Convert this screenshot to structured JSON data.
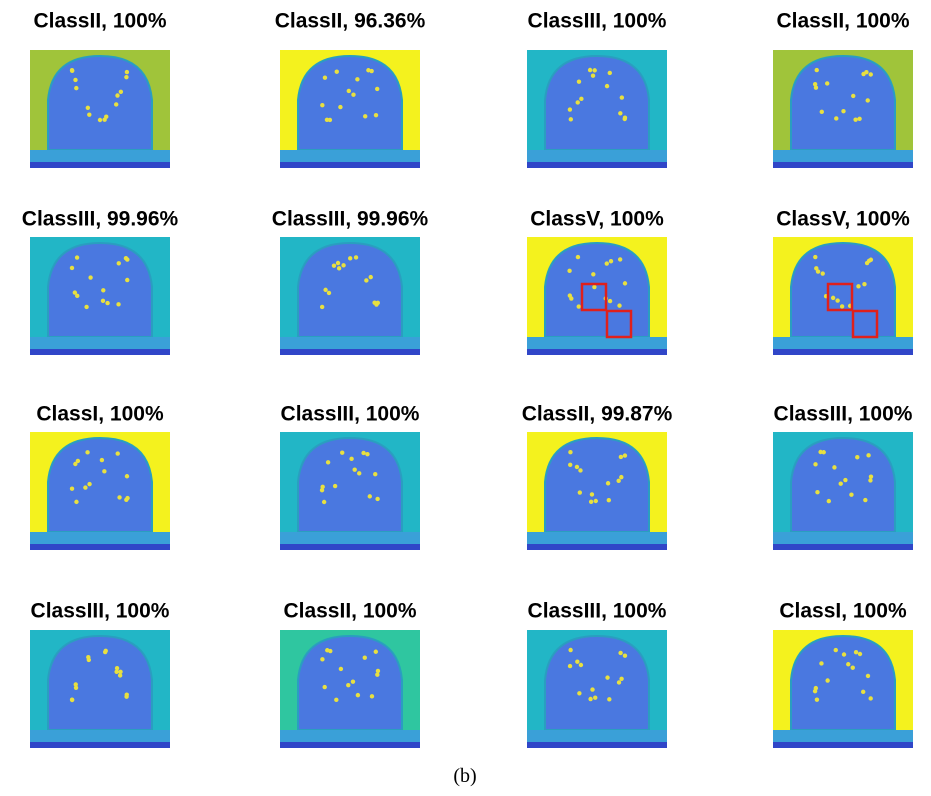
{
  "panels": [
    {
      "title": "ClassII, 100%"
    },
    {
      "title": "ClassII, 96.36%"
    },
    {
      "title": "ClassIII, 100%"
    },
    {
      "title": "ClassII, 100%"
    },
    {
      "title": "ClassIII, 99.96%"
    },
    {
      "title": "ClassIII, 99.96%"
    },
    {
      "title": "ClassV, 100%"
    },
    {
      "title": "ClassV, 100%"
    },
    {
      "title": "ClassI, 100%"
    },
    {
      "title": "ClassIII, 100%"
    },
    {
      "title": "ClassII, 99.87%"
    },
    {
      "title": "ClassIII, 100%"
    },
    {
      "title": "ClassIII, 100%"
    },
    {
      "title": "ClassII, 100%"
    },
    {
      "title": "ClassIII, 100%"
    },
    {
      "title": "ClassI, 100%"
    }
  ],
  "caption": "(b)"
}
